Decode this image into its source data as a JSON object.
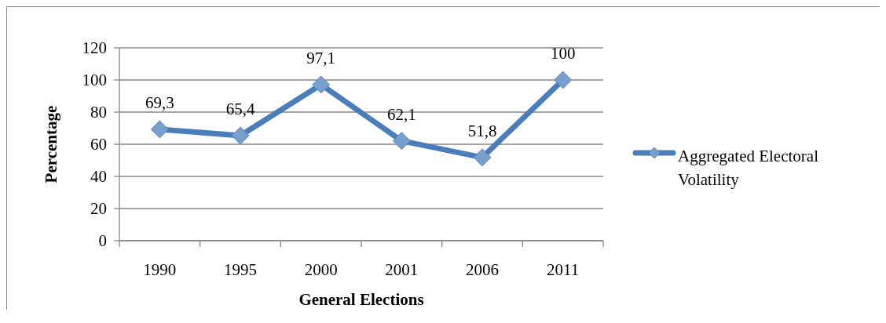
{
  "chart_data": {
    "type": "line",
    "xlabel": "General Elections",
    "ylabel": "Percentage",
    "categories": [
      "1990",
      "1995",
      "2000",
      "2001",
      "2006",
      "2011"
    ],
    "series": [
      {
        "name": "Aggregated Electoral Volatility",
        "color": "#4a7ebb",
        "values": [
          69.3,
          65.4,
          97.1,
          62.1,
          51.8,
          100
        ],
        "value_labels": [
          "69,3",
          "65,4",
          "97,1",
          "62,1",
          "51,8",
          "100"
        ]
      }
    ],
    "ylim": [
      0,
      120
    ],
    "yticks": [
      0,
      20,
      40,
      60,
      80,
      100,
      120
    ],
    "grid": "y",
    "legend": "right",
    "marker": "diamond",
    "line_style": "solid"
  }
}
